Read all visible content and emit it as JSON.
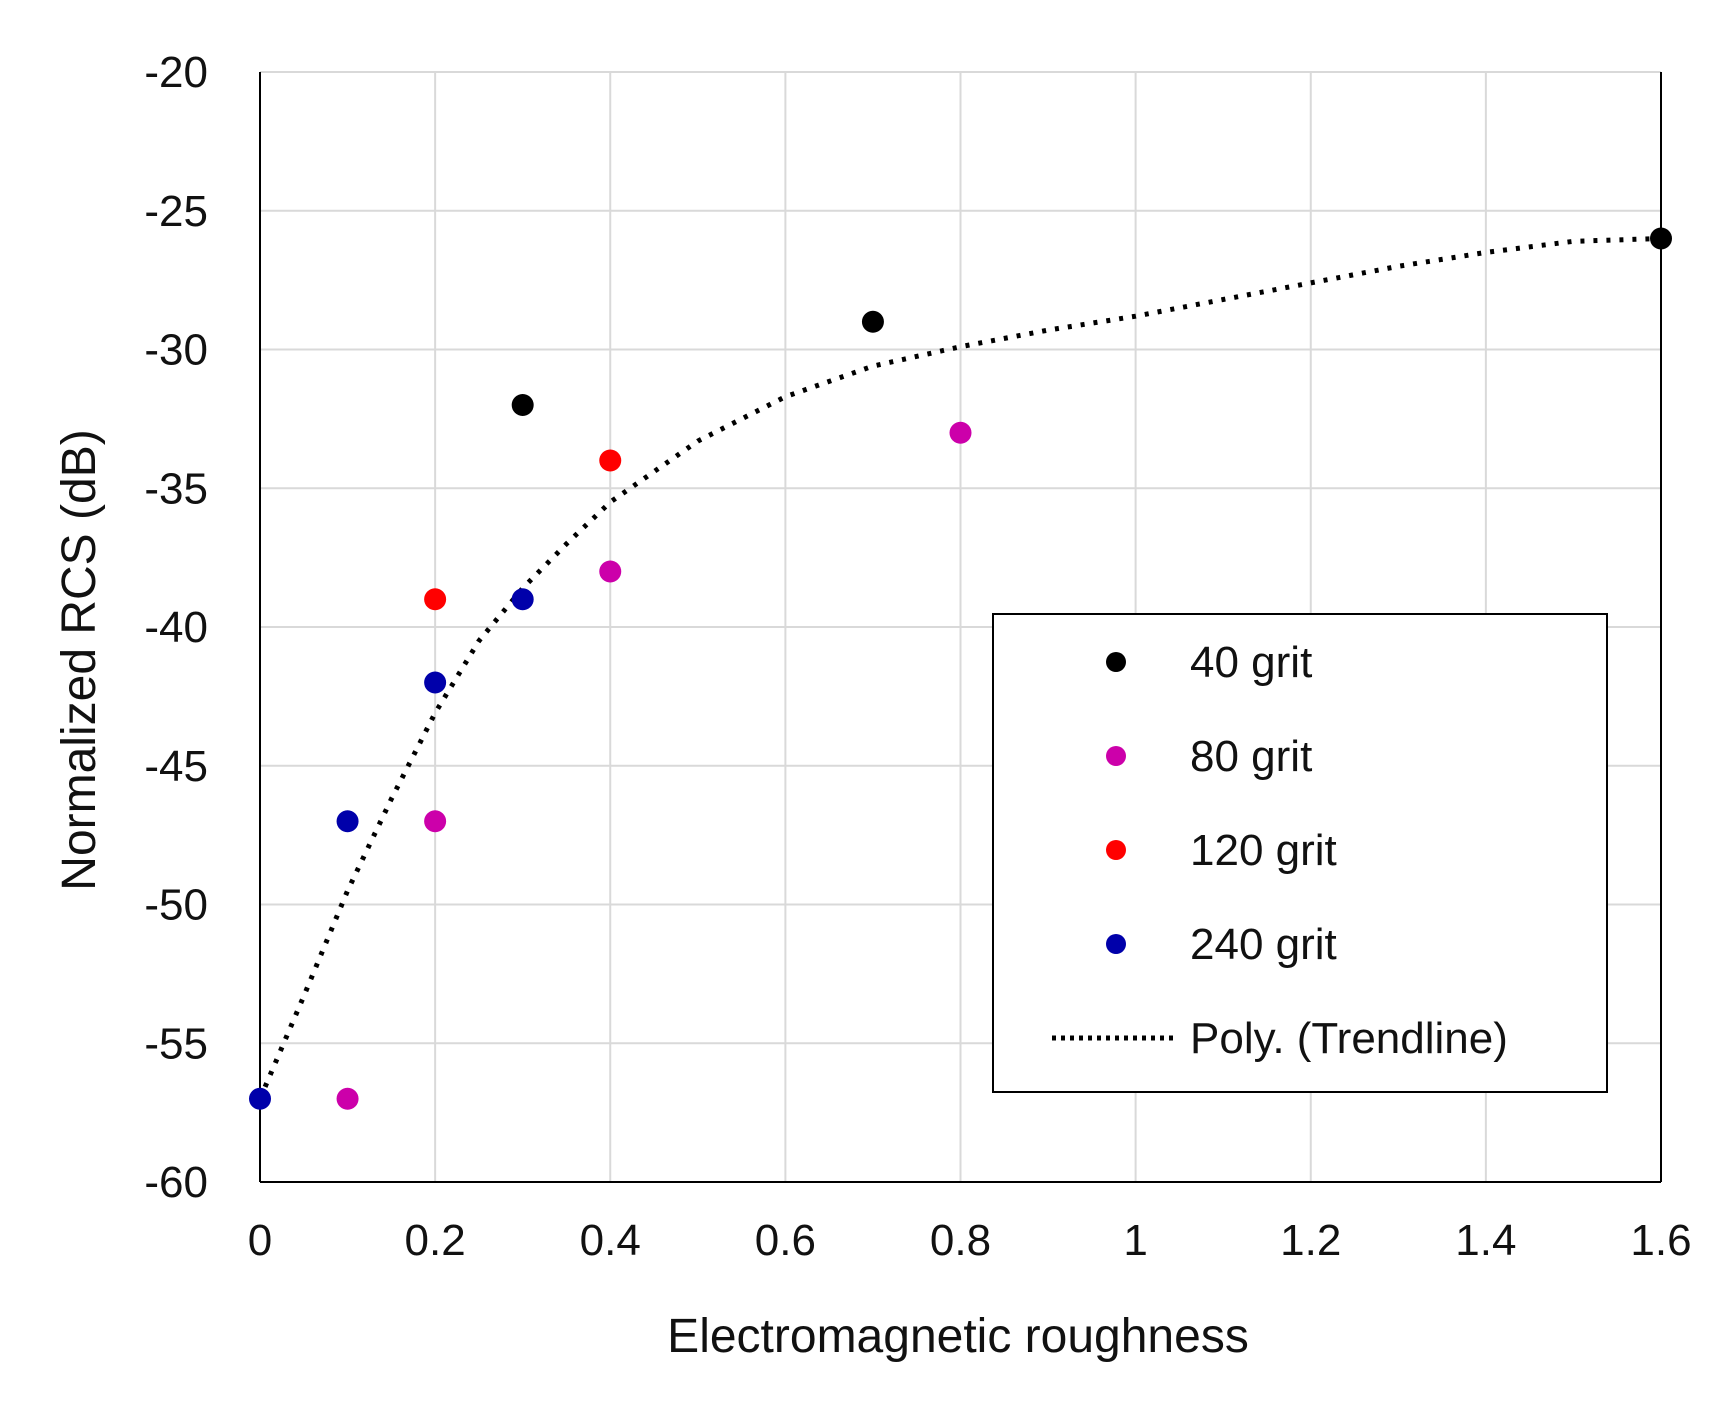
{
  "chart_data": {
    "type": "scatter",
    "title": "",
    "xlabel": "Electromagnetic roughness",
    "ylabel": "Normalized RCS (dB)",
    "xlim": [
      0,
      1.6
    ],
    "ylim": [
      -60,
      -20
    ],
    "x_ticks": [
      0,
      0.2,
      0.4,
      0.6,
      0.8,
      1,
      1.2,
      1.4,
      1.6
    ],
    "x_tick_labels": [
      "0",
      "0.2",
      "0.4",
      "0.6",
      "0.8",
      "1",
      "1.2",
      "1.4",
      "1.6"
    ],
    "y_ticks": [
      -60,
      -55,
      -50,
      -45,
      -40,
      -35,
      -30,
      -25,
      -20
    ],
    "y_tick_labels": [
      "-60",
      "-55",
      "-50",
      "-45",
      "-40",
      "-35",
      "-30",
      "-25",
      "-20"
    ],
    "grid": true,
    "legend_position": "lower-right",
    "series": [
      {
        "name": "40 grit",
        "color": "#000000",
        "points": [
          {
            "x": 0.3,
            "y": -32
          },
          {
            "x": 0.7,
            "y": -29
          },
          {
            "x": 1.6,
            "y": -26
          }
        ]
      },
      {
        "name": "80 grit",
        "color": "#cc00aa",
        "points": [
          {
            "x": 0.1,
            "y": -57
          },
          {
            "x": 0.2,
            "y": -47
          },
          {
            "x": 0.4,
            "y": -38
          },
          {
            "x": 0.8,
            "y": -33
          }
        ]
      },
      {
        "name": "120 grit",
        "color": "#ff0000",
        "points": [
          {
            "x": 0.2,
            "y": -39
          },
          {
            "x": 0.4,
            "y": -34
          }
        ]
      },
      {
        "name": "240 grit",
        "color": "#0000aa",
        "points": [
          {
            "x": 0,
            "y": -57
          },
          {
            "x": 0.1,
            "y": -47
          },
          {
            "x": 0.2,
            "y": -42
          },
          {
            "x": 0.3,
            "y": -39
          }
        ]
      }
    ],
    "trendline": {
      "name": "Poly. (Trendline)",
      "style": "dotted",
      "color": "#000000",
      "points": [
        {
          "x": 0,
          "y": -57
        },
        {
          "x": 0.05,
          "y": -53.3
        },
        {
          "x": 0.1,
          "y": -49.5
        },
        {
          "x": 0.15,
          "y": -46.2
        },
        {
          "x": 0.2,
          "y": -43.1
        },
        {
          "x": 0.25,
          "y": -40.5
        },
        {
          "x": 0.3,
          "y": -38.6
        },
        {
          "x": 0.35,
          "y": -37.0
        },
        {
          "x": 0.4,
          "y": -35.5
        },
        {
          "x": 0.5,
          "y": -33.3
        },
        {
          "x": 0.6,
          "y": -31.7
        },
        {
          "x": 0.7,
          "y": -30.6
        },
        {
          "x": 0.8,
          "y": -29.9
        },
        {
          "x": 0.9,
          "y": -29.3
        },
        {
          "x": 1.0,
          "y": -28.8
        },
        {
          "x": 1.1,
          "y": -28.2
        },
        {
          "x": 1.2,
          "y": -27.6
        },
        {
          "x": 1.3,
          "y": -27.0
        },
        {
          "x": 1.4,
          "y": -26.5
        },
        {
          "x": 1.5,
          "y": -26.1
        },
        {
          "x": 1.6,
          "y": -26.0
        }
      ]
    }
  }
}
